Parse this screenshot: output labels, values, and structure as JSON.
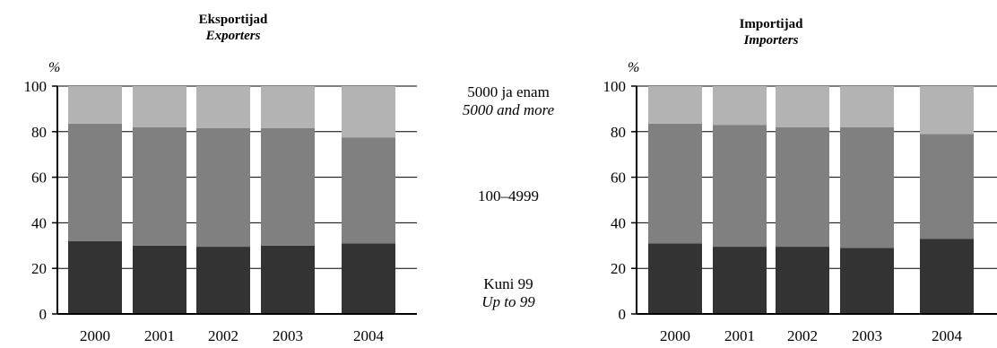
{
  "chart_data": [
    {
      "type": "bar",
      "stacked": true,
      "title": "Eksportijad",
      "subtitle": "Exporters",
      "ylabel": "%",
      "ylim": [
        0,
        100
      ],
      "yticks": [
        "0",
        "20",
        "40",
        "60",
        "80",
        "100"
      ],
      "categories": [
        "2000",
        "2001",
        "2002",
        "2003",
        "2004"
      ],
      "series": [
        {
          "name": "Kuni 99",
          "values": [
            32,
            30,
            29.5,
            30,
            31
          ],
          "color": "#333333"
        },
        {
          "name": "100–4999",
          "values": [
            51.5,
            52,
            52,
            51.5,
            46.5
          ],
          "color": "#808080"
        },
        {
          "name": "5000 ja enam",
          "values": [
            16.5,
            18,
            18.5,
            18.5,
            22.5
          ],
          "color": "#b3b3b3"
        }
      ]
    },
    {
      "type": "bar",
      "stacked": true,
      "title": "Importijad",
      "subtitle": "Importers",
      "ylabel": "%",
      "ylim": [
        0,
        100
      ],
      "yticks": [
        "0",
        "20",
        "40",
        "60",
        "80",
        "100"
      ],
      "categories": [
        "2000",
        "2001",
        "2002",
        "2003",
        "2004"
      ],
      "series": [
        {
          "name": "Kuni 99",
          "values": [
            31,
            29.5,
            29.5,
            29,
            33
          ],
          "color": "#333333"
        },
        {
          "name": "100–4999",
          "values": [
            52.5,
            53.5,
            52.5,
            53,
            46
          ],
          "color": "#808080"
        },
        {
          "name": "5000 ja enam",
          "values": [
            16.5,
            17,
            18,
            18,
            21
          ],
          "color": "#b3b3b3"
        }
      ]
    }
  ],
  "legend": {
    "top_main": "5000 ja enam",
    "top_sub": "5000 and more",
    "mid_main": "100–4999",
    "bottom_main": "Kuni 99",
    "bottom_sub": "Up to 99"
  }
}
